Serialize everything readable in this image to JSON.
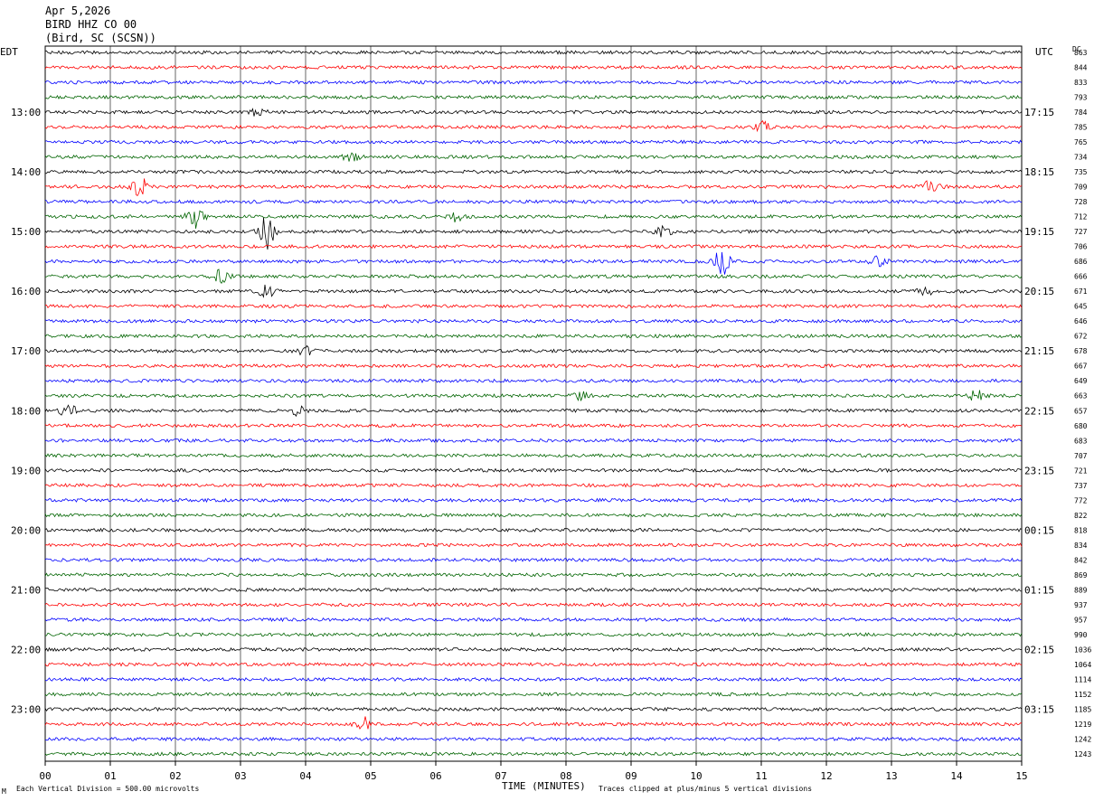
{
  "header": {
    "date": "Apr 5,2026",
    "station": "BIRD HHZ CO 00",
    "location": "(Bird, SC (SCSN))"
  },
  "left_zone": "EDT",
  "right_zone": "UTC",
  "dc_label": "DC",
  "footer": {
    "scale_note": "Each Vertical Division =  500.00 microvolts",
    "clip_note": "Traces clipped at plus/minus 5 vertical divisions",
    "corner_mark": "M"
  },
  "chart_data": {
    "type": "line",
    "xlabel": "TIME (MINUTES)",
    "xlim": [
      0,
      15
    ],
    "x_ticks": [
      "00",
      "01",
      "02",
      "03",
      "04",
      "05",
      "06",
      "07",
      "08",
      "09",
      "10",
      "11",
      "12",
      "13",
      "14",
      "15"
    ],
    "trace_colors": [
      "#000000",
      "#ff0000",
      "#0000ff",
      "#006400"
    ],
    "trace_count": 48,
    "left_time_labels": [
      {
        "trace": 4,
        "label": "13:00"
      },
      {
        "trace": 8,
        "label": "14:00"
      },
      {
        "trace": 12,
        "label": "15:00"
      },
      {
        "trace": 16,
        "label": "16:00"
      },
      {
        "trace": 20,
        "label": "17:00"
      },
      {
        "trace": 24,
        "label": "18:00"
      },
      {
        "trace": 28,
        "label": "19:00"
      },
      {
        "trace": 32,
        "label": "20:00"
      },
      {
        "trace": 36,
        "label": "21:00"
      },
      {
        "trace": 40,
        "label": "22:00"
      },
      {
        "trace": 44,
        "label": "23:00"
      }
    ],
    "right_time_labels": [
      {
        "trace": 4,
        "label": "17:15"
      },
      {
        "trace": 8,
        "label": "18:15"
      },
      {
        "trace": 12,
        "label": "19:15"
      },
      {
        "trace": 16,
        "label": "20:15"
      },
      {
        "trace": 20,
        "label": "21:15"
      },
      {
        "trace": 24,
        "label": "22:15"
      },
      {
        "trace": 28,
        "label": "23:15"
      },
      {
        "trace": 32,
        "label": "00:15"
      },
      {
        "trace": 36,
        "label": "01:15"
      },
      {
        "trace": 40,
        "label": "02:15"
      },
      {
        "trace": 44,
        "label": "03:15"
      }
    ],
    "dc_offsets": [
      "863",
      "844",
      "833",
      "793",
      "784",
      "785",
      "765",
      "734",
      "735",
      "709",
      "728",
      "712",
      "727",
      "706",
      "686",
      "666",
      "671",
      "645",
      "646",
      "672",
      "678",
      "667",
      "649",
      "663",
      "657",
      "680",
      "683",
      "707",
      "721",
      "737",
      "772",
      "822",
      "818",
      "834",
      "842",
      "869",
      "889",
      "937",
      "957",
      "990",
      "1036",
      "1064",
      "1114",
      "1152",
      "1185",
      "1219",
      "1242",
      "1243"
    ],
    "events": [
      {
        "trace": 4,
        "minute": 3.25,
        "amp": 1.6
      },
      {
        "trace": 5,
        "minute": 11.0,
        "amp": 1.8
      },
      {
        "trace": 7,
        "minute": 4.7,
        "amp": 1.5
      },
      {
        "trace": 9,
        "minute": 1.45,
        "amp": 3.5
      },
      {
        "trace": 9,
        "minute": 13.6,
        "amp": 2.5
      },
      {
        "trace": 11,
        "minute": 2.3,
        "amp": 4.0
      },
      {
        "trace": 11,
        "minute": 6.3,
        "amp": 1.5
      },
      {
        "trace": 12,
        "minute": 3.4,
        "amp": 6.0
      },
      {
        "trace": 12,
        "minute": 9.5,
        "amp": 1.6
      },
      {
        "trace": 14,
        "minute": 10.4,
        "amp": 5.0
      },
      {
        "trace": 14,
        "minute": 12.8,
        "amp": 1.6
      },
      {
        "trace": 15,
        "minute": 2.7,
        "amp": 2.4
      },
      {
        "trace": 16,
        "minute": 3.4,
        "amp": 2.0
      },
      {
        "trace": 16,
        "minute": 13.5,
        "amp": 1.5
      },
      {
        "trace": 20,
        "minute": 4.0,
        "amp": 1.5
      },
      {
        "trace": 23,
        "minute": 8.2,
        "amp": 1.5
      },
      {
        "trace": 23,
        "minute": 14.3,
        "amp": 1.8
      },
      {
        "trace": 24,
        "minute": 0.35,
        "amp": 2.0
      },
      {
        "trace": 24,
        "minute": 3.9,
        "amp": 1.5
      },
      {
        "trace": 45,
        "minute": 4.9,
        "amp": 2.2
      }
    ]
  }
}
